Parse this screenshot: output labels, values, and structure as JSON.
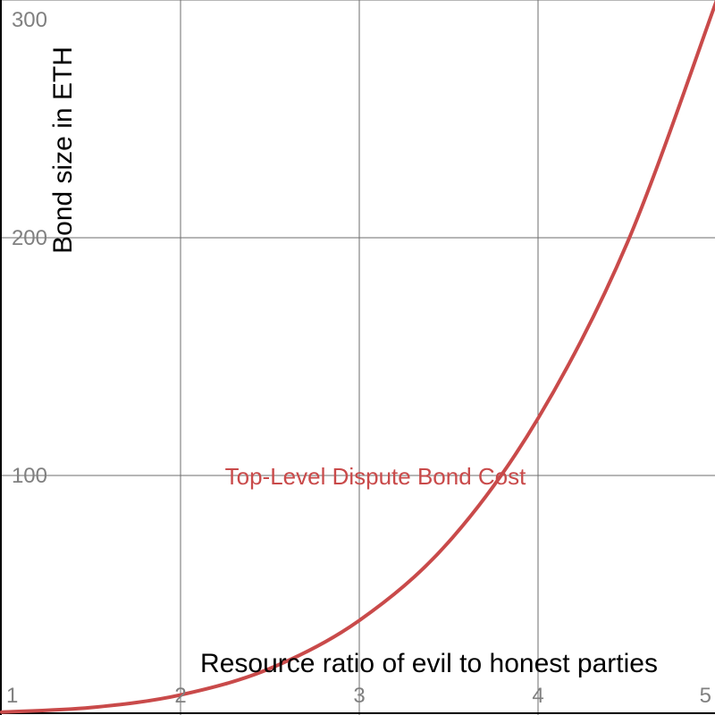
{
  "chart_data": {
    "type": "line",
    "xlabel": "Resource ratio of evil to honest parties",
    "ylabel": "Bond size in ETH",
    "xlim": [
      1,
      5
    ],
    "ylim": [
      0,
      300
    ],
    "x_ticks": [
      "1",
      "2",
      "3",
      "4",
      "5"
    ],
    "y_ticks": [
      "300",
      "200",
      "100"
    ],
    "grid": true,
    "annotation": "Top-Level Dispute Bond Cost",
    "series": [
      {
        "color": "#c94a4a",
        "x": [
          1,
          1.5,
          2,
          2.5,
          3,
          3.5,
          4,
          4.5,
          5
        ],
        "y": [
          0.48,
          2.4,
          7.7,
          18.8,
          39,
          72,
          124,
          198,
          300
        ]
      }
    ]
  }
}
